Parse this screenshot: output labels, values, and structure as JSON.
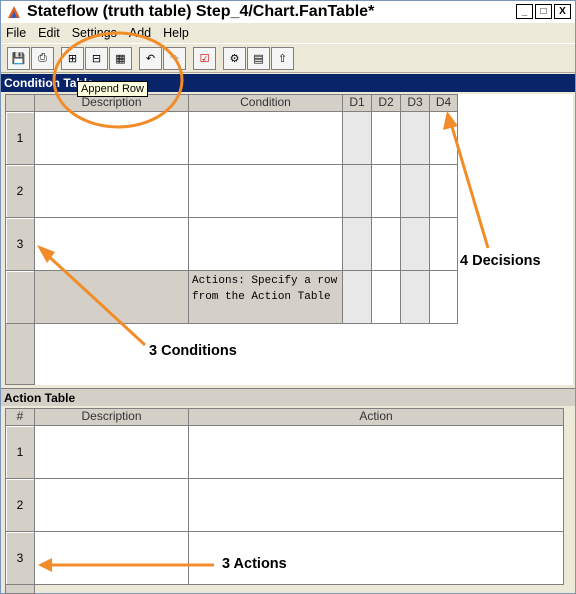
{
  "window": {
    "title": "Stateflow (truth table) Step_4/Chart.FanTable*",
    "buttons": [
      "_",
      "□",
      "X"
    ]
  },
  "menu": [
    "File",
    "Edit",
    "Settings",
    "Add",
    "Help"
  ],
  "toolbar_tooltip": "Append Row",
  "condition_table": {
    "header": "Condition Table",
    "columns": [
      "Description",
      "Condition",
      "D1",
      "D2",
      "D3",
      "D4"
    ],
    "rows": [
      "1",
      "2",
      "3"
    ],
    "actions_row_text": "Actions: Specify a row\nfrom the Action Table"
  },
  "action_table": {
    "header": "Action Table",
    "columns": [
      "#",
      "Description",
      "Action"
    ],
    "rows": [
      "1",
      "2",
      "3"
    ]
  },
  "annotations": {
    "decisions": "4 Decisions",
    "conditions": "3 Conditions",
    "actions": "3 Actions"
  },
  "colors": {
    "annotation": "#f28c28",
    "section_header": "#0a246a"
  }
}
